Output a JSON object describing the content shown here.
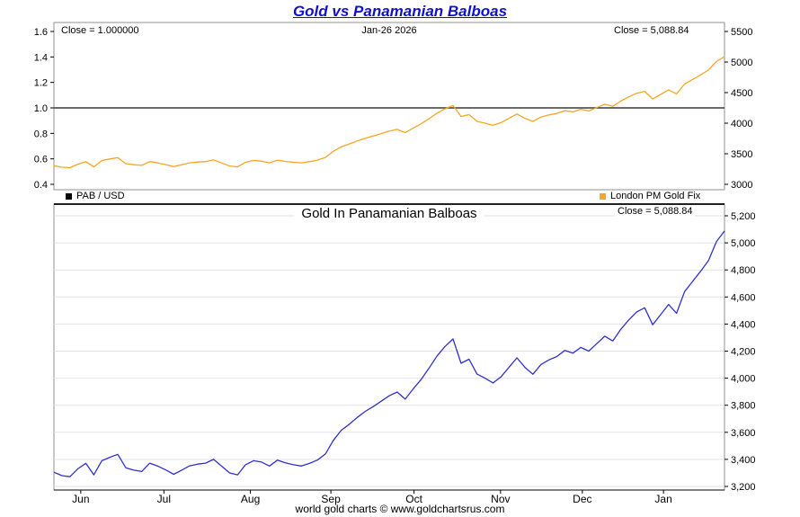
{
  "page_title": "Gold vs Panamanian Balboas",
  "footer": "world gold charts © www.goldchartsrus.com",
  "colors": {
    "title_blue": "#1111cc",
    "gold_line": "#f5a623",
    "blue_line": "#3030ce",
    "ratio_line": "#3a3a3a",
    "grid": "#e2e2ea",
    "box": "#909090",
    "separator": "#000000"
  },
  "top_chart": {
    "close_left": "Close = 1.000000",
    "date_label": "Jan-26  2026",
    "close_right": "Close = 5,088.84",
    "left_ticks": [
      {
        "label": "1.6",
        "value": 1.6
      },
      {
        "label": "1.4",
        "value": 1.4
      },
      {
        "label": "1.2",
        "value": 1.2
      },
      {
        "label": "1.0",
        "value": 1.0
      },
      {
        "label": "0.8",
        "value": 0.8
      },
      {
        "label": "0.6",
        "value": 0.6
      },
      {
        "label": "0.4",
        "value": 0.4
      }
    ],
    "right_ticks": [
      {
        "label": "5500",
        "value": 5500
      },
      {
        "label": "5000",
        "value": 5000
      },
      {
        "label": "4500",
        "value": 4500
      },
      {
        "label": "4000",
        "value": 4000
      },
      {
        "label": "3500",
        "value": 3500
      },
      {
        "label": "3000",
        "value": 3000
      }
    ],
    "legend": [
      {
        "label": "PAB / USD",
        "color": "#000000"
      },
      {
        "label": "London PM Gold Fix",
        "color": "#f5a623"
      }
    ]
  },
  "bottom_chart": {
    "title": "Gold In Panamanian Balboas",
    "close_right": "Close = 5,088.84",
    "right_ticks": [
      {
        "label": "5,200",
        "value": 5200
      },
      {
        "label": "5,000",
        "value": 5000
      },
      {
        "label": "4,800",
        "value": 4800
      },
      {
        "label": "4,600",
        "value": 4600
      },
      {
        "label": "4,400",
        "value": 4400
      },
      {
        "label": "4,200",
        "value": 4200
      },
      {
        "label": "4,000",
        "value": 4000
      },
      {
        "label": "3,800",
        "value": 3800
      },
      {
        "label": "3,600",
        "value": 3600
      },
      {
        "label": "3,400",
        "value": 3400
      },
      {
        "label": "3,200",
        "value": 3200
      }
    ]
  },
  "x_axis": {
    "ticks": [
      {
        "label": "Jun",
        "pos": 0.04
      },
      {
        "label": "Jul",
        "pos": 0.164
      },
      {
        "label": "Aug",
        "pos": 0.293
      },
      {
        "label": "Sep",
        "pos": 0.413
      },
      {
        "label": "Oct",
        "pos": 0.537
      },
      {
        "label": "Nov",
        "pos": 0.666
      },
      {
        "label": "Dec",
        "pos": 0.788
      },
      {
        "label": "Jan",
        "pos": 0.909
      }
    ]
  },
  "chart_data": [
    {
      "type": "line",
      "title": "Gold vs Panamanian Balboas",
      "x_tick_labels": [
        "Jun",
        "Jul",
        "Aug",
        "Sep",
        "Oct",
        "Nov",
        "Dec",
        "Jan"
      ],
      "left_axis": {
        "ylim": [
          0.4,
          1.6
        ]
      },
      "right_axis": {
        "ylim": [
          3000,
          5500
        ]
      },
      "annotations": [
        "Close = 1.000000",
        "Jan-26  2026",
        "Close = 5,088.84"
      ],
      "legend_position": "bottom",
      "grid": false,
      "series": [
        {
          "name": "PAB / USD",
          "axis": "left",
          "color": "#3a3a3a",
          "constant": 1.0
        },
        {
          "name": "London PM Gold Fix",
          "axis": "right",
          "color": "#f5a623",
          "values": [
            3305,
            3280,
            3272,
            3330,
            3371,
            3286,
            3390,
            3415,
            3437,
            3338,
            3320,
            3310,
            3372,
            3350,
            3322,
            3290,
            3320,
            3352,
            3365,
            3372,
            3400,
            3350,
            3300,
            3286,
            3360,
            3390,
            3380,
            3351,
            3395,
            3375,
            3360,
            3351,
            3370,
            3395,
            3440,
            3540,
            3615,
            3660,
            3710,
            3755,
            3790,
            3830,
            3870,
            3898,
            3845,
            3920,
            3990,
            4075,
            4165,
            4235,
            4290,
            4110,
            4140,
            4030,
            4000,
            3965,
            4009,
            4080,
            4150,
            4080,
            4029,
            4100,
            4135,
            4160,
            4205,
            4185,
            4227,
            4200,
            4255,
            4310,
            4275,
            4360,
            4430,
            4490,
            4520,
            4395,
            4470,
            4545,
            4480,
            4640,
            4715,
            4790,
            4870,
            5010,
            5088
          ]
        }
      ]
    },
    {
      "type": "line",
      "title": "Gold In Panamanian Balboas",
      "x_tick_labels": [
        "Jun",
        "Jul",
        "Aug",
        "Sep",
        "Oct",
        "Nov",
        "Dec",
        "Jan"
      ],
      "ylim": [
        3200,
        5200
      ],
      "annotations": [
        "Close = 5,088.84"
      ],
      "grid": true,
      "series": [
        {
          "name": "Gold in Panamanian Balboas",
          "color": "#3030ce",
          "values": [
            3305,
            3280,
            3272,
            3330,
            3371,
            3286,
            3390,
            3415,
            3437,
            3338,
            3320,
            3310,
            3372,
            3350,
            3322,
            3290,
            3320,
            3352,
            3365,
            3372,
            3400,
            3350,
            3300,
            3286,
            3360,
            3390,
            3380,
            3351,
            3395,
            3375,
            3360,
            3351,
            3370,
            3395,
            3440,
            3540,
            3615,
            3660,
            3710,
            3755,
            3790,
            3830,
            3870,
            3898,
            3845,
            3920,
            3990,
            4075,
            4165,
            4235,
            4290,
            4110,
            4140,
            4030,
            4000,
            3965,
            4009,
            4080,
            4150,
            4080,
            4029,
            4100,
            4135,
            4160,
            4205,
            4185,
            4227,
            4200,
            4255,
            4310,
            4275,
            4360,
            4430,
            4490,
            4520,
            4395,
            4470,
            4545,
            4480,
            4640,
            4715,
            4790,
            4870,
            5010,
            5088
          ]
        }
      ]
    }
  ]
}
